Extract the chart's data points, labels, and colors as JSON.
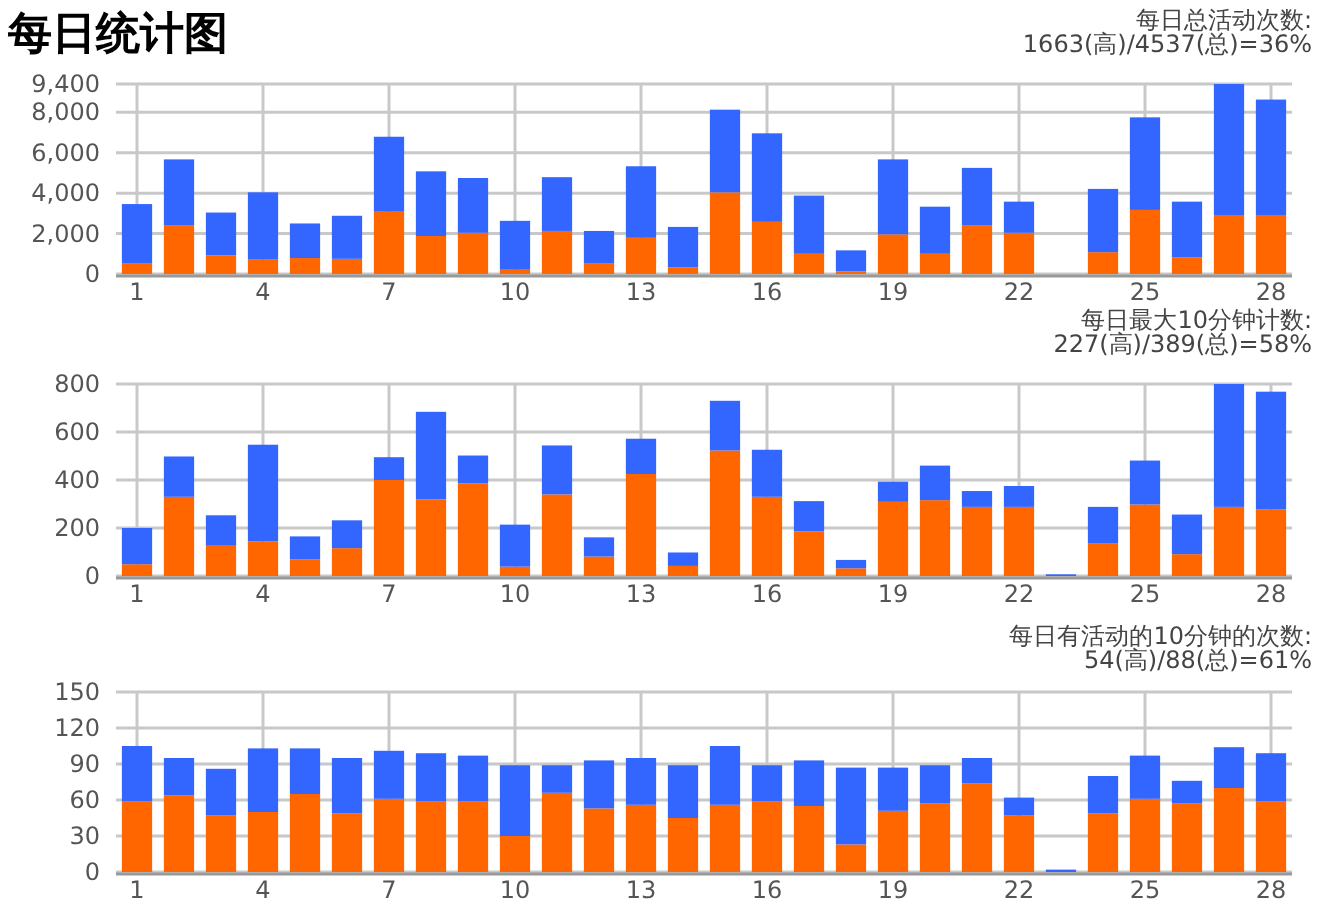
{
  "chart_data": [
    {
      "type": "bar",
      "title": "每日统计图",
      "subtitle": "每日总活动次数:\n1663(高)/4537(总)=36%",
      "categories": [
        "1",
        null,
        null,
        "4",
        null,
        null,
        "7",
        null,
        null,
        "10",
        null,
        null,
        "13",
        null,
        null,
        "16",
        null,
        null,
        "19",
        null,
        null,
        "22",
        null,
        null,
        "25",
        null,
        null,
        "28"
      ],
      "stacked": true,
      "grid": true,
      "ylim": [
        0,
        9400
      ],
      "yticks": [
        0,
        {
          "value": 2000,
          "label": "2,000"
        },
        {
          "value": 4000,
          "label": "4,000"
        },
        {
          "value": 6000,
          "label": "6,000"
        },
        {
          "value": 8000,
          "label": "8,000"
        },
        {
          "value": 9400,
          "label": "9,400"
        }
      ],
      "series": [
        {
          "color": "#ff6600",
          "values": [
            540,
            2420,
            920,
            710,
            790,
            750,
            3080,
            1880,
            2040,
            210,
            2130,
            540,
            1790,
            330,
            4040,
            2580,
            1000,
            130,
            1960,
            1000,
            2420,
            2040,
            0,
            1080,
            3170,
            830,
            2920,
            2920
          ]
        },
        {
          "color": "#3366ff",
          "values": [
            2920,
            3250,
            2120,
            3330,
            1710,
            2130,
            3710,
            3200,
            2710,
            2420,
            2660,
            1590,
            3540,
            2000,
            4090,
            4380,
            2880,
            1040,
            3710,
            2330,
            2830,
            1540,
            0,
            3130,
            4580,
            2750,
            6480,
            5710
          ]
        }
      ]
    },
    {
      "type": "bar",
      "subtitle": "每日最大10分钟计数:\n227(高)/389(总)=58%",
      "categories": [
        "1",
        null,
        null,
        "4",
        null,
        null,
        "7",
        null,
        null,
        "10",
        null,
        null,
        "13",
        null,
        null,
        "16",
        null,
        null,
        "19",
        null,
        null,
        "22",
        null,
        null,
        "25",
        null,
        null,
        "28"
      ],
      "stacked": true,
      "grid": true,
      "ylim": [
        0,
        800
      ],
      "yticks": [
        0,
        200,
        400,
        600,
        800
      ],
      "series": [
        {
          "color": "#ff6600",
          "values": [
            49,
            330,
            126,
            144,
            70,
            116,
            400,
            319,
            386,
            39,
            340,
            81,
            425,
            42,
            523,
            330,
            186,
            32,
            309,
            316,
            288,
            288,
            0,
            137,
            298,
            91,
            288,
            277
          ]
        },
        {
          "color": "#3366ff",
          "values": [
            151,
            168,
            127,
            403,
            95,
            116,
            95,
            365,
            116,
            175,
            204,
            80,
            147,
            56,
            207,
            196,
            126,
            35,
            84,
            144,
            66,
            87,
            7,
            151,
            183,
            165,
            512,
            491
          ]
        }
      ]
    },
    {
      "type": "bar",
      "subtitle": "每日有活动的10分钟的次数:\n54(高)/88(总)=61%",
      "categories": [
        "1",
        null,
        null,
        "4",
        null,
        null,
        "7",
        null,
        null,
        "10",
        null,
        null,
        "13",
        null,
        null,
        "16",
        null,
        null,
        "19",
        null,
        null,
        "22",
        null,
        null,
        "25",
        null,
        null,
        "28"
      ],
      "stacked": true,
      "grid": true,
      "ylim": [
        0,
        150
      ],
      "yticks": [
        0,
        30,
        60,
        90,
        120,
        150
      ],
      "series": [
        {
          "color": "#ff6600",
          "values": [
            59,
            64,
            47,
            50,
            65,
            49,
            61,
            59,
            59,
            30,
            66,
            53,
            56,
            45,
            56,
            59,
            55,
            23,
            51,
            57,
            74,
            47,
            0,
            49,
            61,
            57,
            70,
            59
          ]
        },
        {
          "color": "#3366ff",
          "values": [
            46,
            31,
            39,
            53,
            38,
            46,
            40,
            40,
            38,
            59,
            23,
            40,
            39,
            44,
            49,
            30,
            38,
            64,
            36,
            32,
            21,
            15,
            2,
            31,
            36,
            19,
            34,
            40
          ]
        }
      ]
    }
  ]
}
